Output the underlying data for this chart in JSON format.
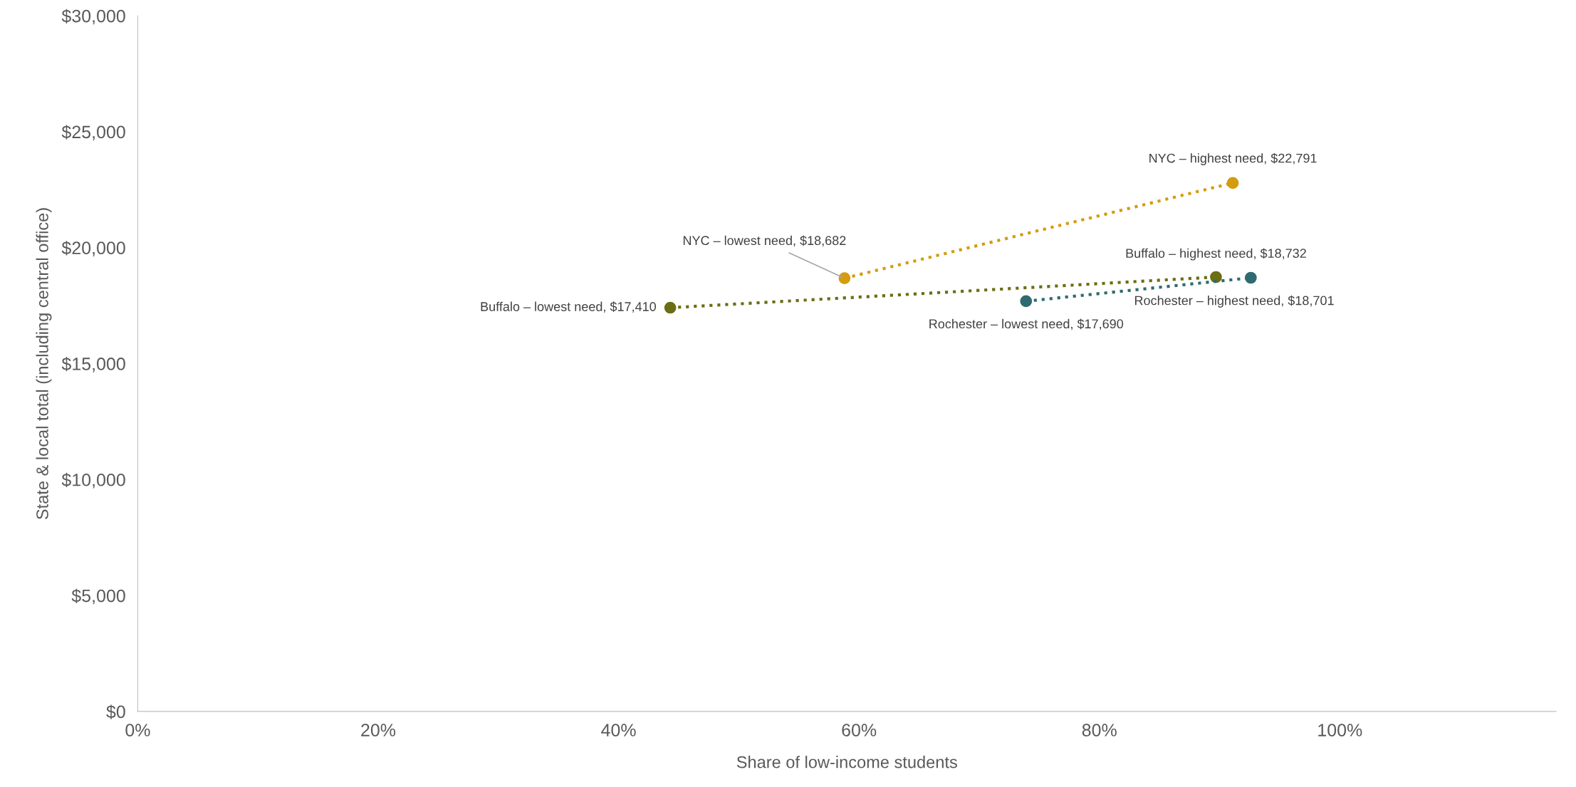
{
  "chart_data": {
    "type": "line",
    "xlabel": "Share of low-income students",
    "ylabel": "State & local total (including central office)",
    "series": [
      {
        "color": "#d49c0e",
        "x": [
          58.8,
          91.1
        ],
        "values": [
          18682,
          22791
        ]
      },
      {
        "color": "#6b6e12",
        "x": [
          44.3,
          89.7
        ],
        "values": [
          17410,
          18732
        ]
      },
      {
        "color": "#2e6b70",
        "x": [
          73.9,
          92.6
        ],
        "values": [
          17690,
          18701
        ]
      }
    ],
    "marker": "circle",
    "line_style": "dotted",
    "grid": false,
    "legend": false,
    "xlim": [
      0,
      118
    ],
    "xticks": [
      {
        "value": 0,
        "label": "0%"
      },
      {
        "value": 20,
        "label": "20%"
      },
      {
        "value": 40,
        "label": "40%"
      },
      {
        "value": 60,
        "label": "60%"
      },
      {
        "value": 80,
        "label": "80%"
      },
      {
        "value": 100,
        "label": "100%"
      }
    ],
    "ylim": [
      0,
      30000
    ],
    "yticks": [
      {
        "value": 0,
        "label": "$0"
      },
      {
        "value": 5000,
        "label": "$5,000"
      },
      {
        "value": 10000,
        "label": "$10,000"
      },
      {
        "value": 15000,
        "label": "$15,000"
      },
      {
        "value": 20000,
        "label": "$20,000"
      },
      {
        "value": 25000,
        "label": "$25,000"
      },
      {
        "value": 30000,
        "label": "$30,000"
      }
    ],
    "annotations": [
      {
        "text": "NYC – lowest need, $18,682",
        "x": 58.8,
        "y": 18682
      },
      {
        "text": "NYC – highest need, $22,791",
        "x": 91.1,
        "y": 22791
      },
      {
        "text": "Buffalo – lowest need, $17,410",
        "x": 44.3,
        "y": 17410
      },
      {
        "text": "Buffalo – highest need, $18,732",
        "x": 89.7,
        "y": 18732
      },
      {
        "text": "Rochester – lowest need, $17,690",
        "x": 73.9,
        "y": 17690
      },
      {
        "text": "Rochester – highest need, $18,701",
        "x": 92.6,
        "y": 18701
      }
    ]
  }
}
